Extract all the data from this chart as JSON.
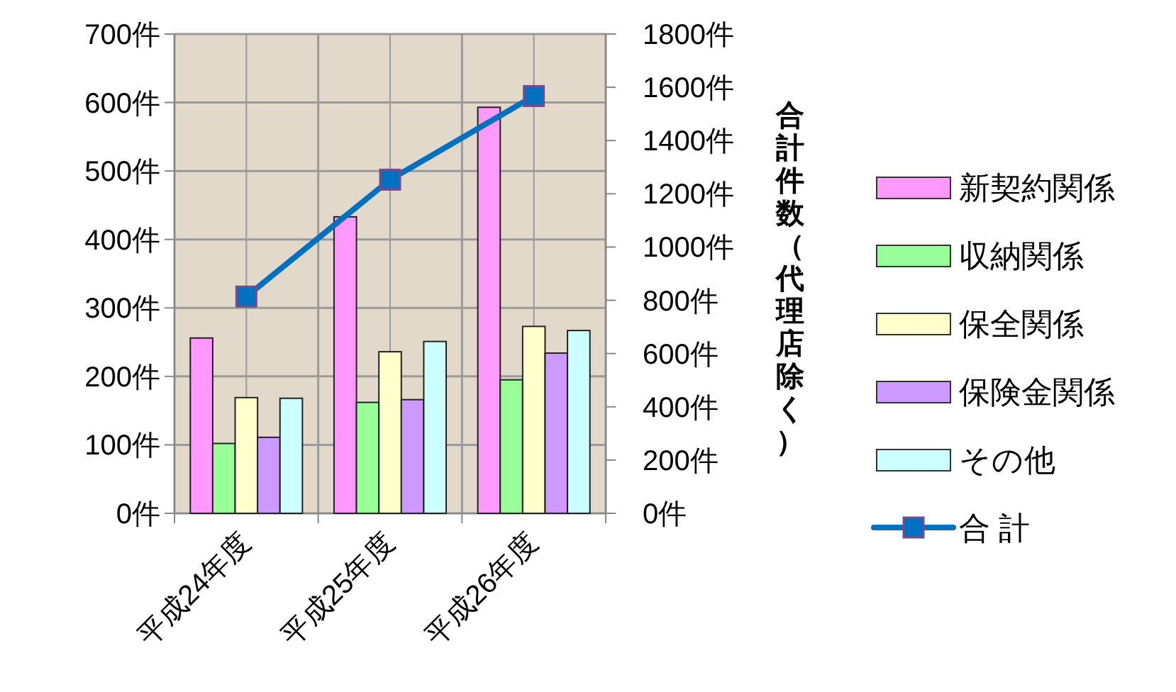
{
  "chart_data": {
    "type": "bar",
    "categories": [
      "平成24年度",
      "平成25年度",
      "平成26年度"
    ],
    "series": [
      {
        "name": "新契約関係",
        "color": "#ff99ff",
        "values": [
          256,
          433,
          593
        ]
      },
      {
        "name": "収納関係",
        "color": "#99ff99",
        "values": [
          102,
          162,
          195
        ]
      },
      {
        "name": "保全関係",
        "color": "#ffffcc",
        "values": [
          169,
          236,
          273
        ]
      },
      {
        "name": "保険金関係",
        "color": "#cc99ff",
        "values": [
          111,
          166,
          234
        ]
      },
      {
        "name": "その他",
        "color": "#ccffff",
        "values": [
          168,
          251,
          267
        ]
      },
      {
        "name": "合 計",
        "color": "#0070c0",
        "type": "line",
        "axis": "y2",
        "marker": "square",
        "values": [
          814,
          1253,
          1567
        ]
      }
    ],
    "ylim": [
      0,
      700
    ],
    "yticks": [
      {
        "value": 0,
        "label": "0件"
      },
      {
        "value": 100,
        "label": "100件"
      },
      {
        "value": 200,
        "label": "200件"
      },
      {
        "value": 300,
        "label": "300件"
      },
      {
        "value": 400,
        "label": "400件"
      },
      {
        "value": 500,
        "label": "500件"
      },
      {
        "value": 600,
        "label": "600件"
      },
      {
        "value": 700,
        "label": "700件"
      }
    ],
    "y2lim": [
      0,
      1800
    ],
    "y2ticks": [
      {
        "value": 0,
        "label": "0件"
      },
      {
        "value": 200,
        "label": "200件"
      },
      {
        "value": 400,
        "label": "400件"
      },
      {
        "value": 600,
        "label": "600件"
      },
      {
        "value": 800,
        "label": "800件"
      },
      {
        "value": 1000,
        "label": "1000件"
      },
      {
        "value": 1200,
        "label": "1200件"
      },
      {
        "value": 1400,
        "label": "1400件"
      },
      {
        "value": 1600,
        "label": "1600件"
      },
      {
        "value": 1800,
        "label": "1800件"
      }
    ],
    "y2label": "合計件数（代理店除く）",
    "grid": true,
    "legend": "right"
  }
}
